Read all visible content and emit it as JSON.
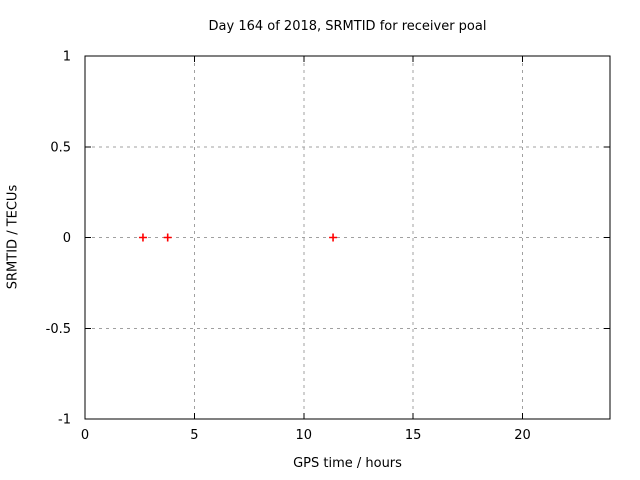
{
  "chart_data": {
    "type": "scatter",
    "title": "Day 164 of 2018, SRMTID for receiver poal",
    "xlabel": "GPS time / hours",
    "ylabel": "SRMTID / TECUs",
    "points": [
      {
        "x": 2.65,
        "y": 0
      },
      {
        "x": 3.78,
        "y": 0
      },
      {
        "x": 11.34,
        "y": 0
      }
    ],
    "marker": "plus",
    "marker_color": "#ff0000",
    "xlim": [
      0,
      24
    ],
    "ylim": [
      -1,
      1
    ],
    "xticks": {
      "values": [
        0,
        5,
        10,
        15,
        20
      ],
      "labels": [
        "0",
        "5",
        "10",
        "15",
        "20"
      ]
    },
    "yticks": {
      "values": [
        -1,
        -0.5,
        0,
        0.5,
        1
      ],
      "labels": [
        "-1",
        "-0.5",
        "0",
        "0.5",
        "1"
      ]
    },
    "grid": {
      "show": true,
      "color": "#a0a0a0",
      "dash": "3 4"
    },
    "colors": {
      "border": "#000000",
      "text": "#000000",
      "background": "#ffffff"
    },
    "legend": "none"
  }
}
